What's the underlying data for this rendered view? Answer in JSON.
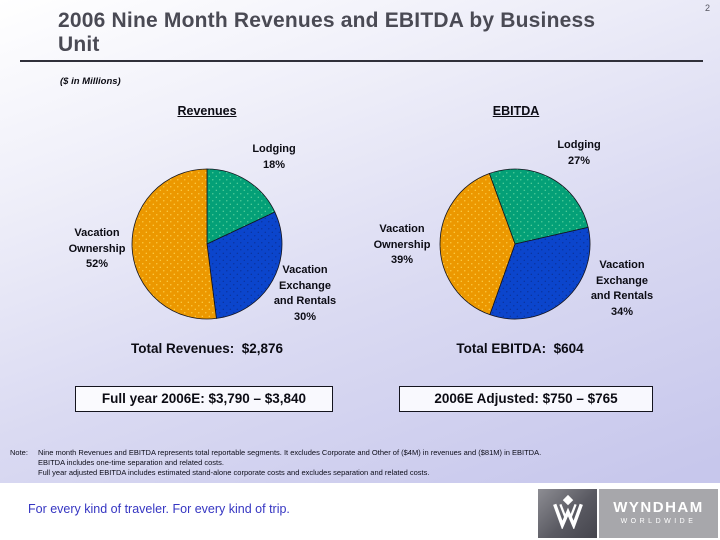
{
  "page_number": "2",
  "title": "2006 Nine Month Revenues and EBITDA by Business Unit",
  "subtitle": "($ in Millions)",
  "chart_data": [
    {
      "type": "pie",
      "title": "Revenues",
      "units": "percent of total revenues",
      "start_angle_deg": 0,
      "total_text": "Total Revenues:  $2,876",
      "total_value": 2876,
      "callout": "Full year 2006E: $3,790 – $3,840",
      "slices": [
        {
          "label": "Lodging",
          "pct": 18,
          "pct_label": "18%",
          "color": "#04A077",
          "dot_color": "#5FD49E"
        },
        {
          "label": "Vacation Exchange and Rentals",
          "pct": 30,
          "pct_label": "30%",
          "color": "#0B45CC",
          "dot_color": "#093097"
        },
        {
          "label": "Vacation Ownership",
          "pct": 52,
          "pct_label": "52%",
          "color": "#EC9800",
          "dot_color": "#FFD24D"
        }
      ]
    },
    {
      "type": "pie",
      "title": "EBITDA",
      "units": "percent of total EBITDA",
      "start_angle_deg": -20,
      "total_text": "Total EBITDA:  $604",
      "total_value": 604,
      "callout": "2006E Adjusted: $750 – $765",
      "slices": [
        {
          "label": "Lodging",
          "pct": 27,
          "pct_label": "27%",
          "color": "#04A077",
          "dot_color": "#5FD49E"
        },
        {
          "label": "Vacation Exchange and Rentals",
          "pct": 34,
          "pct_label": "34%",
          "color": "#0B45CC",
          "dot_color": "#093097"
        },
        {
          "label": "Vacation Ownership",
          "pct": 39,
          "pct_label": "39%",
          "color": "#EC9800",
          "dot_color": "#FFD24D"
        }
      ]
    }
  ],
  "note": {
    "prefix": "Note:",
    "lines": [
      "Nine month Revenues and EBITDA represents total reportable segments. It excludes Corporate and Other of ($4M) in revenues and ($81M) in EBITDA.",
      "EBITDA includes one-time separation and related costs.",
      "Full year adjusted EBITDA includes estimated stand-alone corporate costs and excludes separation and related costs."
    ]
  },
  "footer": {
    "tagline": "For every kind of traveler. For every kind of trip.",
    "brand": "WYNDHAM",
    "brand_sub": "WORLDWIDE"
  },
  "colors": {
    "title_text": "#4A4A54",
    "tagline_text": "#3636C2",
    "background_bottom": "#C7C7EC"
  }
}
